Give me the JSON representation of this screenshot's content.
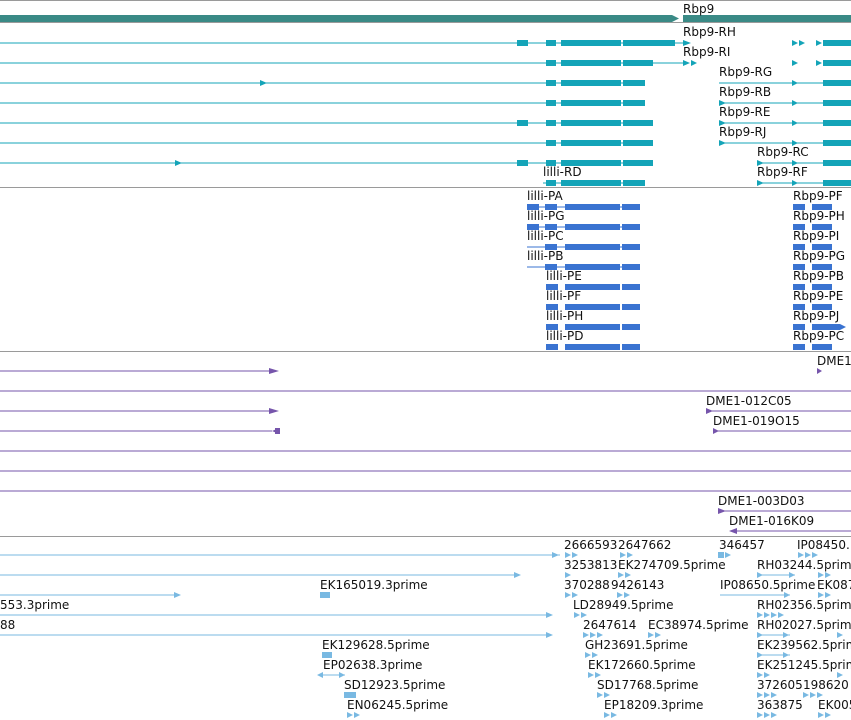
{
  "colors": {
    "gene": "#3a8a86",
    "transcript": "#14a4b8",
    "protein": "#3a73d1",
    "clone": "#7655ab",
    "est": "#79b9e2",
    "separator": "#9a9a9a"
  },
  "gene_track": {
    "gene_labels": [
      "Rbp9"
    ]
  },
  "transcript_track": {
    "transcript_labels": [
      "Rbp9-RH",
      "Rbp9-RI",
      "Rbp9-RG",
      "Rbp9-RB",
      "Rbp9-RE",
      "Rbp9-RJ",
      "Rbp9-RC",
      "Rbp9-RF",
      "lilli-RD"
    ]
  },
  "protein_track": {
    "protein_labels": [
      "lilli-PA",
      "lilli-PG",
      "lilli-PC",
      "lilli-PB",
      "lilli-PE",
      "lilli-PF",
      "lilli-PH",
      "lilli-PD",
      "Rbp9-PF",
      "Rbp9-PH",
      "Rbp9-PI",
      "Rbp9-PG",
      "Rbp9-PB",
      "Rbp9-PE",
      "Rbp9-PJ",
      "Rbp9-PC"
    ]
  },
  "clone_track": {
    "clone_labels": [
      "DME1",
      "DME1-012C05",
      "DME1-019O15",
      "DME1-003D03",
      "DME1-016K09"
    ]
  },
  "est_track": {
    "est_labels": [
      "2666593",
      "2647662",
      "346457",
      "IP08450.",
      "3253813",
      "EK274709.5prime",
      "RH03244.5prim",
      "EK165019.3prime",
      "370288",
      "9426143",
      "IP08650.5prime",
      "EK087",
      "553.3prime",
      "LD28949.5prime",
      "RH02356.5prim",
      "88",
      "2647614",
      "EC38974.5prime",
      "RH02027.5prim",
      "EK129628.5prime",
      "GH23691.5prime",
      "EK239562.5prim",
      "EP02638.3prime",
      "EK172660.5prime",
      "EK251245.5prim",
      "SD12923.5prime",
      "SD17768.5prime",
      "372605",
      "198620",
      "EN06245.5prime",
      "EP18209.3prime",
      "363875",
      "EK005"
    ]
  }
}
